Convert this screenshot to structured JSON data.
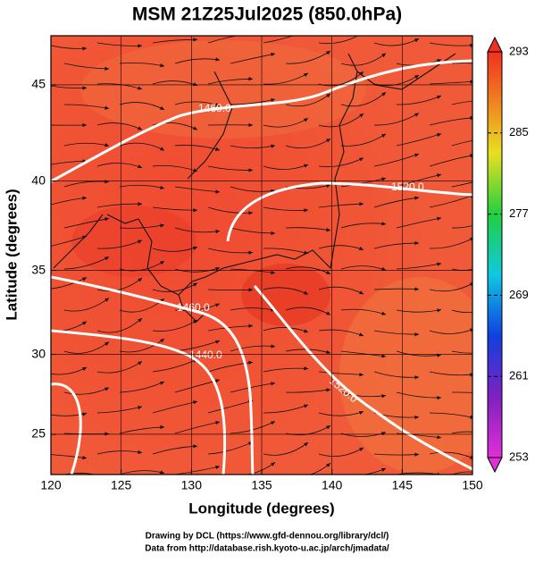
{
  "chart_data": {
    "type": "field_map",
    "title": "MSM 21Z25Jul2025 (850.0hPa)",
    "xlabel": "Longitude (degrees)",
    "ylabel": "Latitude  (degrees)",
    "xlim": [
      120,
      150
    ],
    "xticks": [
      120,
      125,
      130,
      135,
      140,
      145,
      150
    ],
    "ylim": [
      22.4,
      47.4
    ],
    "yticks": [
      25,
      30,
      35,
      40,
      45
    ],
    "projection": "mercator",
    "grid": true,
    "colorbar": {
      "lim": [
        253,
        293
      ],
      "ticks": [
        253,
        261,
        269,
        277,
        285,
        293
      ]
    },
    "contour_labels": [
      "1460.0",
      "1520.0",
      "1460.0",
      "1440.0",
      "1520.0"
    ],
    "footer": [
      "Drawing by DCL (https://www.gfd-dennou.org/library/dcl/)",
      "Data from http://database.rish.kyoto-u.ac.jp/arch/jmadata/"
    ]
  }
}
